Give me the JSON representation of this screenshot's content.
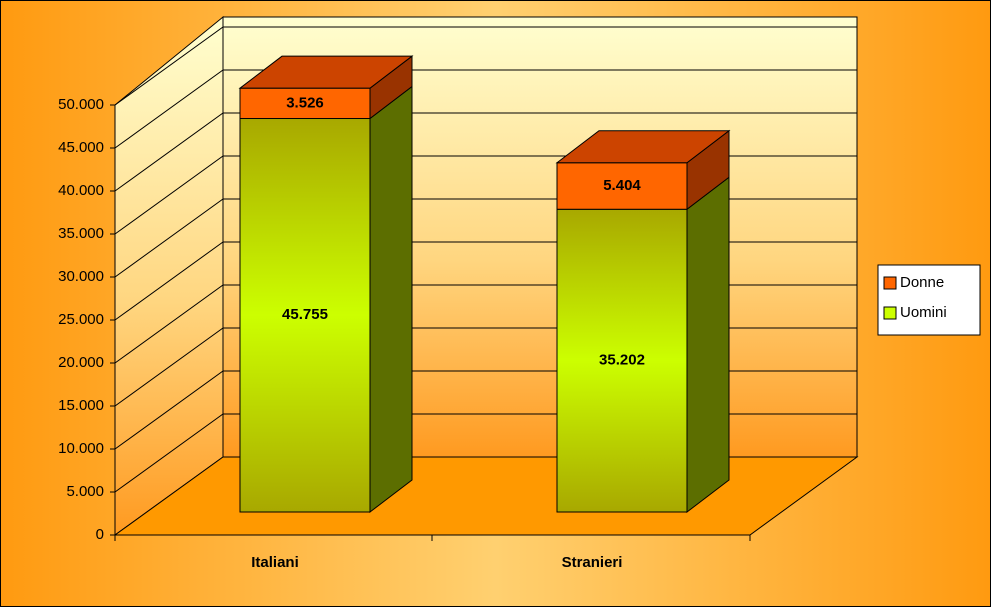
{
  "chart_data": {
    "type": "bar3d_stacked",
    "categories": [
      "Italiani",
      "Stranieri"
    ],
    "series": [
      {
        "name": "Uomini",
        "color": "#ccff00",
        "values": [
          45755,
          35202
        ],
        "value_labels": [
          "45.755",
          "35.202"
        ]
      },
      {
        "name": "Donne",
        "color": "#ff6600",
        "values": [
          3526,
          5404
        ],
        "value_labels": [
          "3.526",
          "5.404"
        ]
      }
    ],
    "ylim": [
      0,
      50000
    ],
    "yticks": [
      0,
      {
        "value": 5000,
        "label": "5.000"
      },
      {
        "value": 10000,
        "label": "10.000"
      },
      {
        "value": 15000,
        "label": "15.000"
      },
      {
        "value": 20000,
        "label": "20.000"
      },
      {
        "value": 25000,
        "label": "25.000"
      },
      {
        "value": 30000,
        "label": "30.000"
      },
      {
        "value": 35000,
        "label": "35.000"
      },
      {
        "value": 40000,
        "label": "40.000"
      },
      {
        "value": 45000,
        "label": "45.000"
      },
      {
        "value": 50000,
        "label": "50.000"
      }
    ],
    "grid": true,
    "legend": "right"
  }
}
